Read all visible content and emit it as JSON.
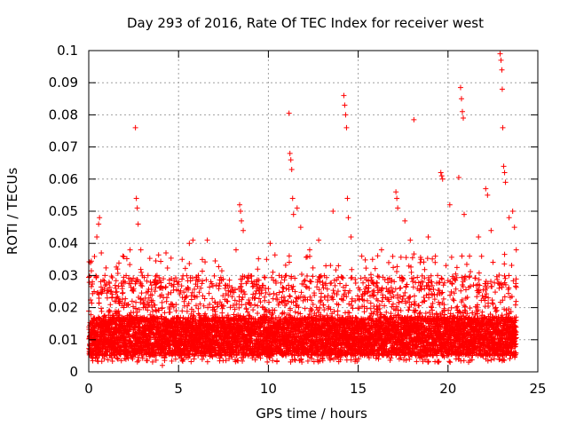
{
  "chart_data": {
    "type": "scatter",
    "title": "Day 293 of 2016, Rate Of TEC Index for receiver west",
    "xlabel": "GPS time / hours",
    "ylabel": "ROTI / TECUs",
    "xlim": [
      0,
      25
    ],
    "ylim": [
      0,
      0.1
    ],
    "x_ticks": [
      0,
      5,
      10,
      15,
      20,
      25
    ],
    "x_tick_labels": [
      "0",
      "5",
      "10",
      "15",
      "20",
      "25"
    ],
    "y_ticks": [
      0,
      0.01,
      0.02,
      0.03,
      0.04,
      0.05,
      0.06,
      0.07,
      0.08,
      0.09,
      0.1
    ],
    "y_tick_labels": [
      "0",
      "0.01",
      "0.02",
      "0.03",
      "0.04",
      "0.05",
      "0.06",
      "0.07",
      "0.08",
      "0.09",
      "0.1"
    ],
    "grid": true,
    "marker": "+",
    "color": "#ff0000",
    "data_range_x": [
      0,
      23.8
    ],
    "series": [
      {
        "name": "ROTI",
        "points": [
          [
            0.1,
            0.034
          ],
          [
            0.2,
            0.028
          ],
          [
            0.3,
            0.025
          ],
          [
            0.45,
            0.042
          ],
          [
            0.55,
            0.046
          ],
          [
            0.6,
            0.048
          ],
          [
            0.7,
            0.037
          ],
          [
            0.9,
            0.03
          ],
          [
            1.2,
            0.025
          ],
          [
            1.6,
            0.032
          ],
          [
            1.9,
            0.036
          ],
          [
            2.3,
            0.038
          ],
          [
            2.6,
            0.076
          ],
          [
            2.65,
            0.054
          ],
          [
            2.7,
            0.051
          ],
          [
            2.75,
            0.046
          ],
          [
            2.9,
            0.038
          ],
          [
            3.3,
            0.03
          ],
          [
            3.8,
            0.03
          ],
          [
            4.1,
            0.002
          ],
          [
            4.3,
            0.037
          ],
          [
            4.6,
            0.029
          ],
          [
            5.2,
            0.035
          ],
          [
            5.6,
            0.04
          ],
          [
            5.8,
            0.041
          ],
          [
            6.1,
            0.03
          ],
          [
            6.6,
            0.041
          ],
          [
            7.1,
            0.027
          ],
          [
            7.6,
            0.027
          ],
          [
            8.2,
            0.038
          ],
          [
            8.4,
            0.052
          ],
          [
            8.45,
            0.05
          ],
          [
            8.5,
            0.047
          ],
          [
            8.6,
            0.044
          ],
          [
            8.9,
            0.03
          ],
          [
            9.4,
            0.026
          ],
          [
            9.9,
            0.035
          ],
          [
            10.1,
            0.04
          ],
          [
            10.6,
            0.03
          ],
          [
            11.0,
            0.03
          ],
          [
            11.15,
            0.0805
          ],
          [
            11.2,
            0.068
          ],
          [
            11.25,
            0.066
          ],
          [
            11.3,
            0.063
          ],
          [
            11.35,
            0.054
          ],
          [
            11.4,
            0.049
          ],
          [
            11.6,
            0.051
          ],
          [
            11.8,
            0.045
          ],
          [
            12.3,
            0.038
          ],
          [
            12.8,
            0.041
          ],
          [
            13.2,
            0.033
          ],
          [
            13.6,
            0.05
          ],
          [
            13.9,
            0.033
          ],
          [
            14.2,
            0.086
          ],
          [
            14.25,
            0.083
          ],
          [
            14.3,
            0.08
          ],
          [
            14.35,
            0.076
          ],
          [
            14.4,
            0.054
          ],
          [
            14.45,
            0.048
          ],
          [
            14.6,
            0.042
          ],
          [
            15.2,
            0.036
          ],
          [
            15.8,
            0.035
          ],
          [
            16.3,
            0.038
          ],
          [
            16.7,
            0.034
          ],
          [
            17.1,
            0.056
          ],
          [
            17.15,
            0.054
          ],
          [
            17.2,
            0.051
          ],
          [
            17.6,
            0.047
          ],
          [
            17.9,
            0.041
          ],
          [
            18.1,
            0.0785
          ],
          [
            18.5,
            0.035
          ],
          [
            18.9,
            0.042
          ],
          [
            19.3,
            0.036
          ],
          [
            19.6,
            0.062
          ],
          [
            19.65,
            0.061
          ],
          [
            19.7,
            0.06
          ],
          [
            20.1,
            0.052
          ],
          [
            20.6,
            0.0605
          ],
          [
            20.7,
            0.0885
          ],
          [
            20.75,
            0.085
          ],
          [
            20.8,
            0.081
          ],
          [
            20.85,
            0.079
          ],
          [
            20.9,
            0.049
          ],
          [
            21.2,
            0.036
          ],
          [
            21.7,
            0.042
          ],
          [
            22.1,
            0.057
          ],
          [
            22.2,
            0.055
          ],
          [
            22.4,
            0.044
          ],
          [
            22.9,
            0.099
          ],
          [
            22.95,
            0.097
          ],
          [
            23.0,
            0.094
          ],
          [
            23.02,
            0.088
          ],
          [
            23.05,
            0.076
          ],
          [
            23.1,
            0.064
          ],
          [
            23.15,
            0.062
          ],
          [
            23.2,
            0.059
          ],
          [
            23.4,
            0.048
          ],
          [
            23.6,
            0.05
          ],
          [
            23.7,
            0.045
          ],
          [
            23.8,
            0.038
          ]
        ],
        "bulk_band": [
          0.003,
          0.03
        ],
        "bulk_typical": 0.011
      }
    ]
  }
}
